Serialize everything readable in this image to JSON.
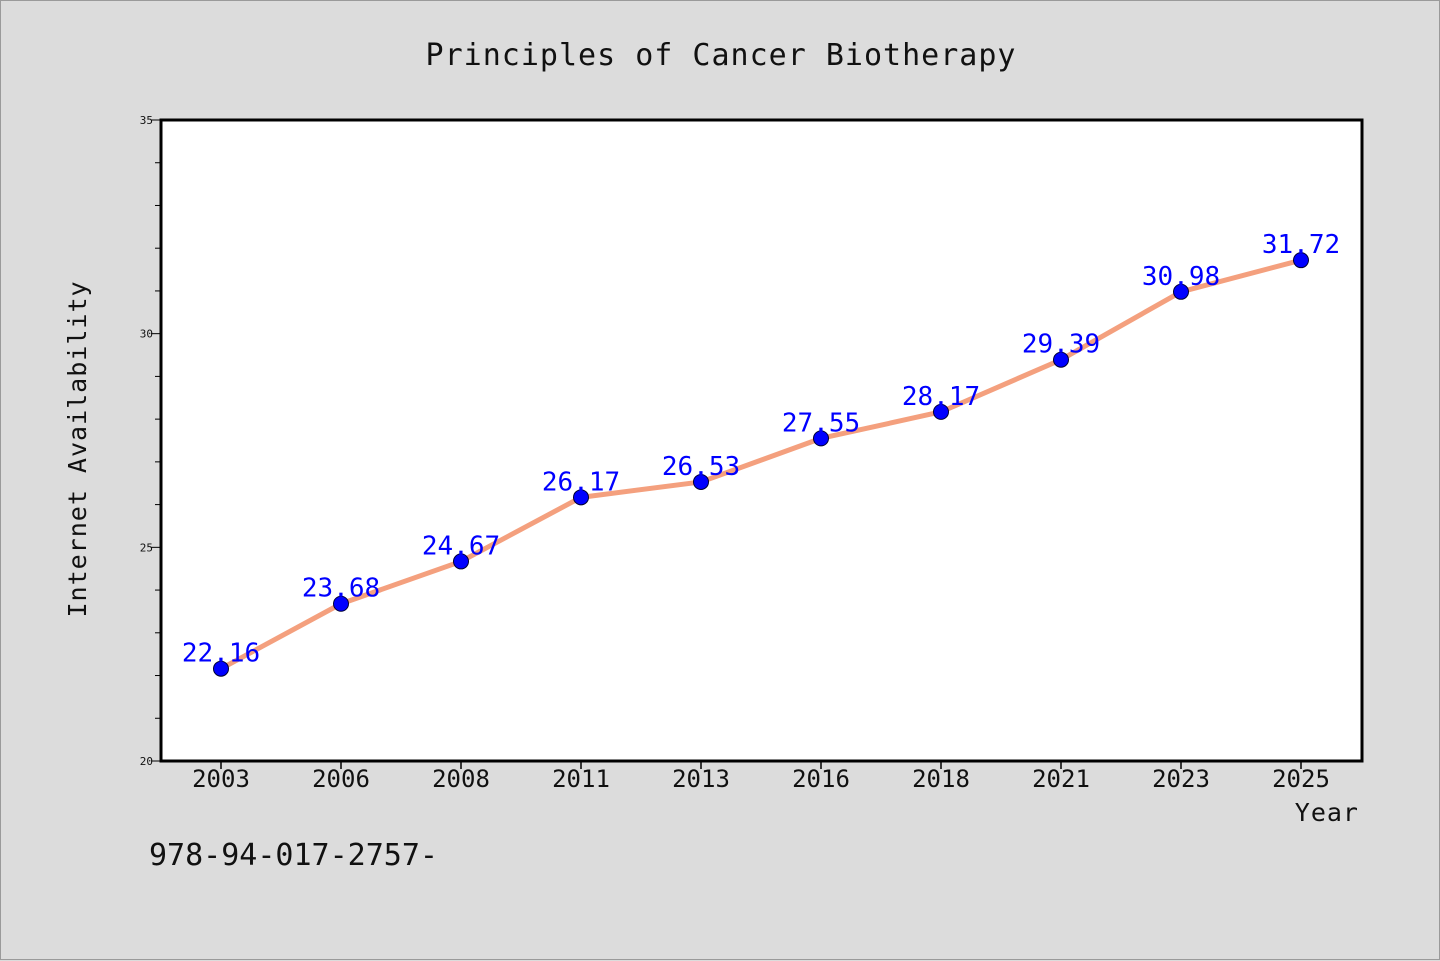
{
  "chart_data": {
    "type": "line",
    "title": "Principles of Cancer Biotherapy",
    "xlabel": "Year",
    "ylabel": "Internet Availability",
    "categories": [
      "2003",
      "2006",
      "2008",
      "2011",
      "2013",
      "2016",
      "2018",
      "2021",
      "2023",
      "2025"
    ],
    "series": [
      {
        "values": [
          22.16,
          23.68,
          24.67,
          26.17,
          26.53,
          27.55,
          28.17,
          29.39,
          30.98,
          31.72
        ],
        "line_color": "#f4a07e",
        "marker_color": "#0000ff"
      }
    ],
    "ylim": [
      20,
      35
    ],
    "yticks": [
      20,
      25,
      30,
      35
    ],
    "grid": false,
    "data_labels": true
  },
  "footer": {
    "text": "978-94-017-2757-"
  },
  "colors": {
    "background": "#dcdcdc",
    "plot_background": "#ffffff",
    "line": "#f4a07e",
    "marker": "#0000ff",
    "value_label": "#0000ff"
  }
}
